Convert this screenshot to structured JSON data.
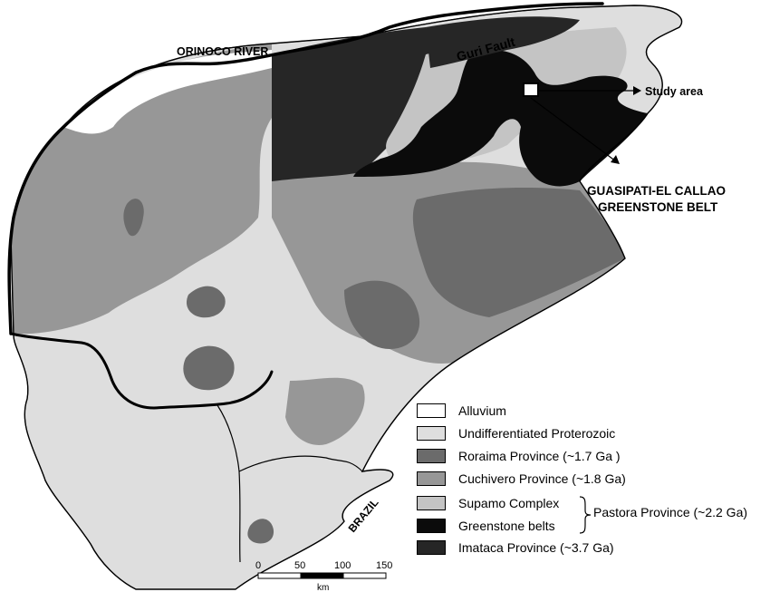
{
  "labels": {
    "river": "ORINOCO RIVER",
    "fault": "Guri Fault",
    "study_area": "Study area",
    "belt_line1": "GUASIPATI-EL CALLAO",
    "belt_line2": "GREENSTONE BELT",
    "country": "BRAZIL"
  },
  "legend": {
    "items": [
      {
        "label": "Alluvium",
        "color": "#ffffff"
      },
      {
        "label": "Undifferentiated Proterozoic",
        "color": "#dedede"
      },
      {
        "label": "Roraima Province (~1.7 Ga )",
        "color": "#6b6b6b"
      },
      {
        "label": "Cuchivero Province (~1.8 Ga)",
        "color": "#979797"
      },
      {
        "label": "Supamo Complex",
        "color": "#c4c4c4"
      },
      {
        "label": "Greenstone belts",
        "color": "#0b0b0b"
      },
      {
        "label": "Imataca Province (~3.7 Ga)",
        "color": "#262626"
      }
    ],
    "group_label": "Pastora Province (~2.2 Ga)"
  },
  "scale_bar": {
    "ticks": [
      "0",
      "50",
      "100",
      "150"
    ],
    "unit": "km"
  },
  "colors": {
    "alluvium": "#ffffff",
    "proterozoic": "#dedede",
    "roraima": "#6b6b6b",
    "cuchivero": "#979797",
    "supamo": "#c4c4c4",
    "greenstone": "#0b0b0b",
    "imataca": "#262626"
  }
}
